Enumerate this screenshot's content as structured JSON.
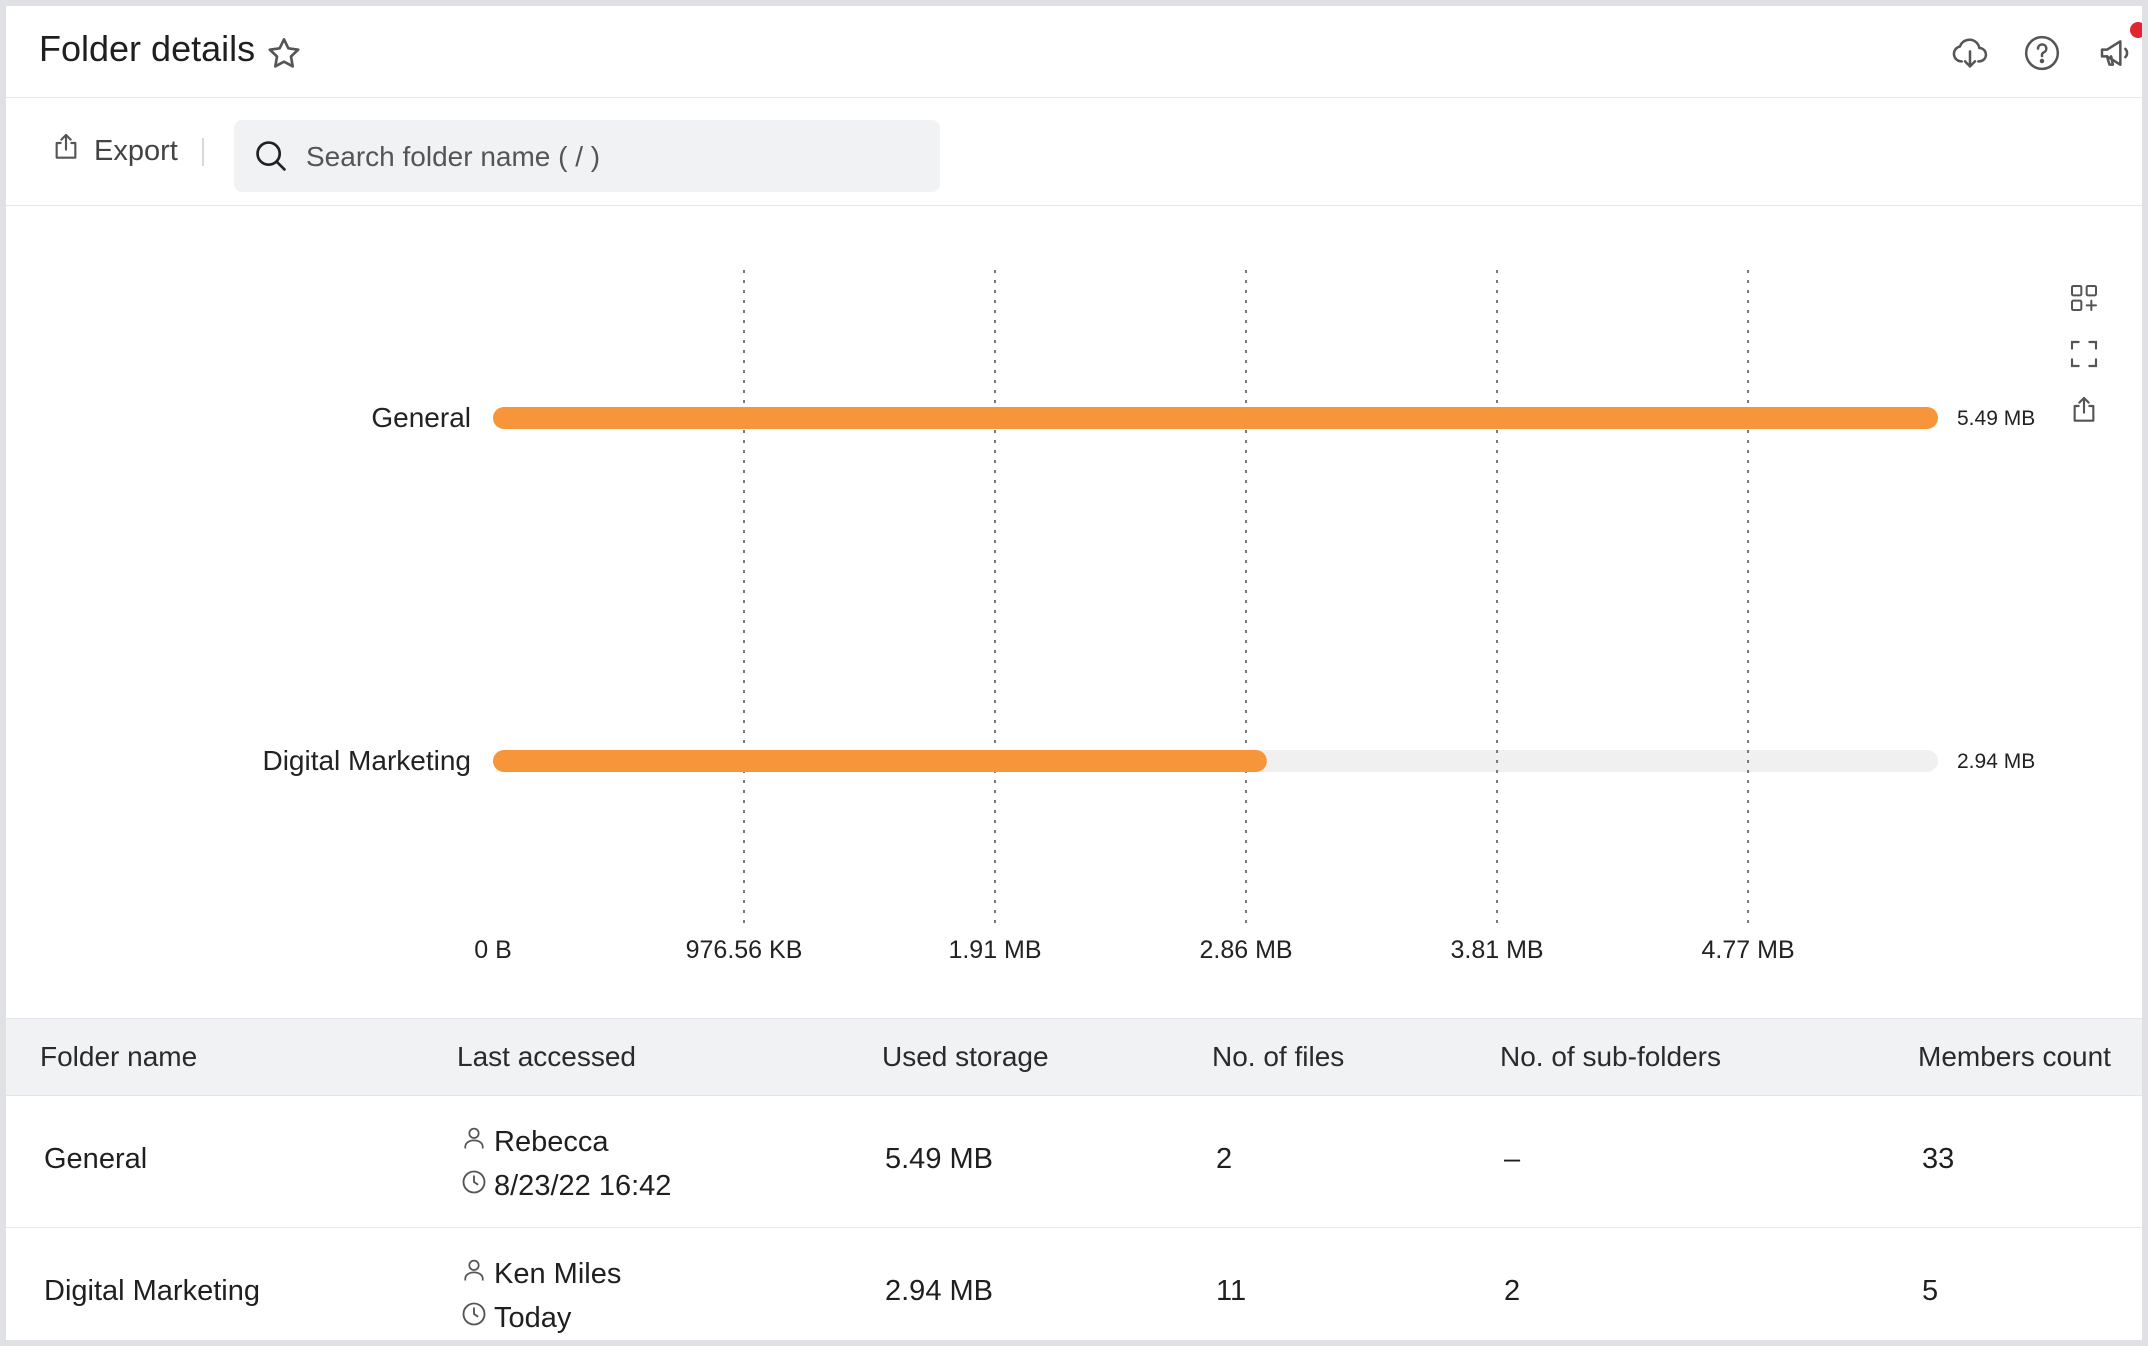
{
  "header": {
    "title": "Folder details",
    "icons": [
      "star-icon",
      "cloud-download-icon",
      "help-icon",
      "announcement-icon"
    ],
    "notification_color": "#e0262f"
  },
  "toolbar": {
    "export_label": "Export",
    "search_placeholder": "Search folder name ( / )"
  },
  "chart_data": {
    "type": "bar",
    "orientation": "horizontal",
    "categories": [
      "General",
      "Digital Marketing"
    ],
    "values_mb": [
      5.49,
      2.94
    ],
    "value_labels": [
      "5.49 MB",
      "2.94 MB"
    ],
    "x_ticks": [
      "0 B",
      "976.56 KB",
      "1.91 MB",
      "2.86 MB",
      "3.81 MB",
      "4.77 MB"
    ],
    "x_tick_values_mb": [
      0,
      0.9537,
      1.9073,
      2.861,
      3.8147,
      4.7684
    ],
    "xlim_mb": [
      0,
      5.49
    ],
    "grid": "vertical dotted",
    "bar_color": "#f7953b",
    "track_color": "#f0f0f0"
  },
  "chart_tools": [
    "grid-add-icon",
    "fullscreen-icon",
    "share-icon"
  ],
  "table": {
    "columns": [
      "Folder name",
      "Last accessed",
      "Used storage",
      "No. of files",
      "No. of sub-folders",
      "Members count"
    ],
    "rows": [
      {
        "name": "General",
        "accessed_by": "Rebecca",
        "accessed_at": "8/23/22 16:42",
        "storage": "5.49 MB",
        "files": "2",
        "subfolders": "–",
        "members": "33"
      },
      {
        "name": "Digital Marketing",
        "accessed_by": "Ken Miles",
        "accessed_at": "Today",
        "storage": "2.94 MB",
        "files": "11",
        "subfolders": "2",
        "members": "5"
      }
    ]
  }
}
